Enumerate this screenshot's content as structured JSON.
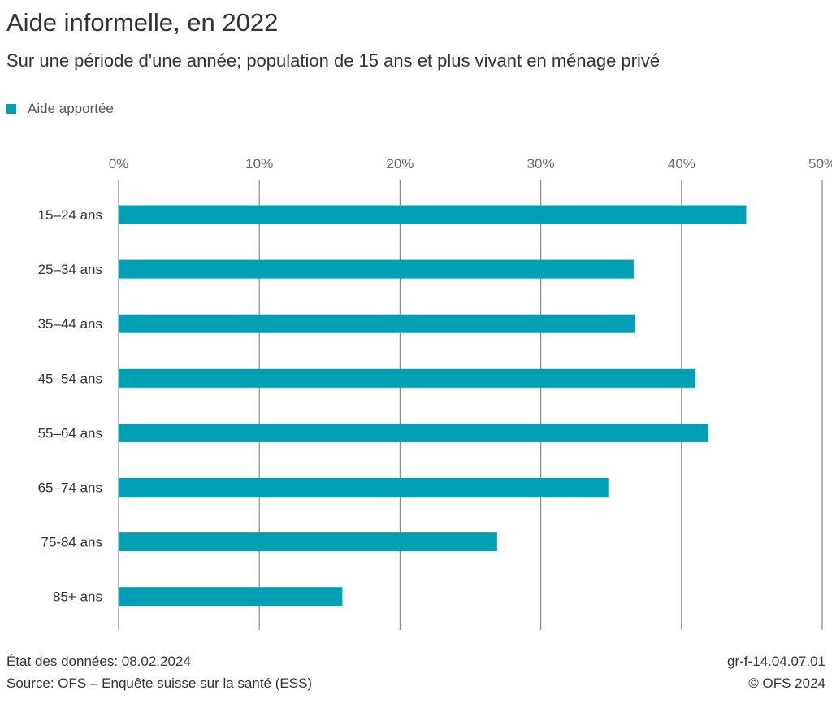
{
  "colors": {
    "bar": "#00a0b4",
    "grid": "#8a8a8a",
    "text": "#333333"
  },
  "footer": {
    "status": "État des données: 08.02.2024",
    "source": "Source: OFS – Enquête suisse sur la santé (ESS)",
    "code": "gr-f-14.04.07.01",
    "copyright": "© OFS 2024"
  },
  "chart_data": {
    "type": "bar",
    "orientation": "horizontal",
    "title": "Aide informelle, en 2022",
    "subtitle": "Sur une période d'une année; population de 15 ans et plus vivant en ménage privé",
    "categories": [
      "15–24 ans",
      "25–34 ans",
      "35–44 ans",
      "45–54 ans",
      "55–64 ans",
      "65–74 ans",
      "75-84 ans",
      "85+ ans"
    ],
    "series": [
      {
        "name": "Aide apportée",
        "values": [
          44.6,
          36.6,
          36.7,
          41.0,
          41.9,
          34.8,
          26.9,
          15.9
        ]
      }
    ],
    "xlim": [
      0,
      50
    ],
    "xticks": [
      "0%",
      "10%",
      "20%",
      "30%",
      "40%",
      "50%"
    ],
    "xtick_values": [
      0,
      10,
      20,
      30,
      40,
      50
    ],
    "grid": true,
    "legend_position": "top-left",
    "xlabel": "",
    "ylabel": ""
  }
}
